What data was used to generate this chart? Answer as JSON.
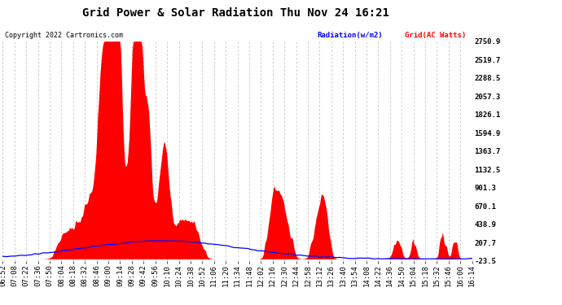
{
  "title": "Grid Power & Solar Radiation Thu Nov 24 16:21",
  "copyright": "Copyright 2022 Cartronics.com",
  "legend_radiation": "Radiation(w/m2)",
  "legend_grid": "Grid(AC Watts)",
  "ylabel_right_ticks": [
    2750.9,
    2519.7,
    2288.5,
    2057.3,
    1826.1,
    1594.9,
    1363.7,
    1132.5,
    901.3,
    670.1,
    438.9,
    207.7,
    -23.5
  ],
  "ymin": -23.5,
  "ymax": 2750.9,
  "bg_color": "#ffffff",
  "plot_bg_color": "#ffffff",
  "grid_color": "#bbbbbb",
  "radiation_color": "#0000ff",
  "grid_power_color": "#ff0000",
  "fill_color": "#ff0000",
  "title_fontsize": 10,
  "tick_fontsize": 6.5,
  "x_tick_labels": [
    "06:52",
    "07:08",
    "07:22",
    "07:36",
    "07:50",
    "08:04",
    "08:18",
    "08:32",
    "08:46",
    "09:00",
    "09:14",
    "09:28",
    "09:42",
    "09:56",
    "10:10",
    "10:24",
    "10:38",
    "10:52",
    "11:06",
    "11:20",
    "11:34",
    "11:48",
    "12:02",
    "12:16",
    "12:30",
    "12:44",
    "12:58",
    "13:12",
    "13:26",
    "13:40",
    "13:54",
    "14:08",
    "14:22",
    "14:36",
    "14:50",
    "15:04",
    "15:18",
    "15:32",
    "15:46",
    "16:00",
    "16:14"
  ]
}
